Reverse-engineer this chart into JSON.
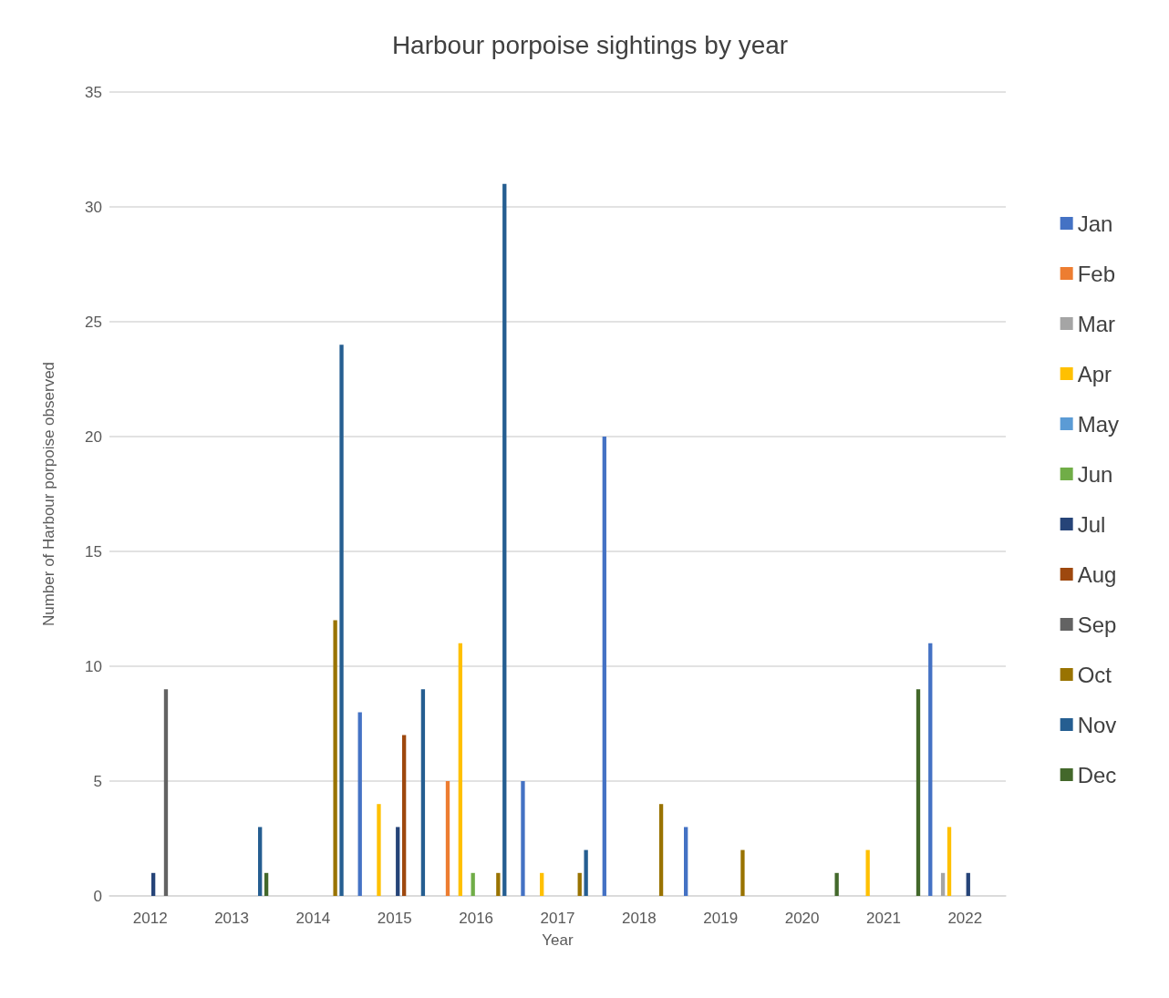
{
  "chart_data": {
    "type": "bar",
    "title": "Harbour porpoise sightings by year",
    "xlabel": "Year",
    "ylabel": "Number of Harbour porpoise observed",
    "categories": [
      "2012",
      "2013",
      "2014",
      "2015",
      "2016",
      "2017",
      "2018",
      "2019",
      "2020",
      "2021",
      "2022"
    ],
    "series": [
      {
        "name": "Jan",
        "color": "#4472c4",
        "values": [
          null,
          null,
          null,
          8,
          null,
          5,
          20,
          3,
          null,
          null,
          11
        ]
      },
      {
        "name": "Feb",
        "color": "#ed7d31",
        "values": [
          null,
          null,
          null,
          null,
          5,
          null,
          null,
          null,
          null,
          null,
          null
        ]
      },
      {
        "name": "Mar",
        "color": "#a5a5a5",
        "values": [
          null,
          null,
          null,
          null,
          null,
          null,
          null,
          null,
          null,
          null,
          1
        ]
      },
      {
        "name": "Apr",
        "color": "#ffc000",
        "values": [
          null,
          null,
          null,
          4,
          11,
          1,
          null,
          null,
          null,
          2,
          3
        ]
      },
      {
        "name": "May",
        "color": "#5b9bd5",
        "values": [
          null,
          null,
          null,
          null,
          null,
          null,
          null,
          null,
          null,
          null,
          null
        ]
      },
      {
        "name": "Jun",
        "color": "#70ad47",
        "values": [
          null,
          null,
          null,
          null,
          1,
          null,
          null,
          null,
          null,
          null,
          null
        ]
      },
      {
        "name": "Jul",
        "color": "#264478",
        "values": [
          1,
          null,
          null,
          3,
          null,
          null,
          null,
          null,
          null,
          null,
          1
        ]
      },
      {
        "name": "Aug",
        "color": "#9e480e",
        "values": [
          null,
          null,
          null,
          7,
          null,
          null,
          null,
          null,
          null,
          null,
          null
        ]
      },
      {
        "name": "Sep",
        "color": "#636363",
        "values": [
          9,
          null,
          null,
          null,
          null,
          null,
          null,
          null,
          null,
          null,
          null
        ]
      },
      {
        "name": "Oct",
        "color": "#997300",
        "values": [
          null,
          null,
          12,
          null,
          1,
          1,
          4,
          2,
          null,
          null,
          null
        ]
      },
      {
        "name": "Nov",
        "color": "#255e91",
        "values": [
          null,
          3,
          24,
          9,
          31,
          2,
          null,
          null,
          null,
          null,
          null
        ]
      },
      {
        "name": "Dec",
        "color": "#43682b",
        "values": [
          null,
          1,
          null,
          null,
          null,
          null,
          null,
          null,
          1,
          9,
          null
        ]
      }
    ],
    "ylim": [
      0,
      35
    ],
    "yticks": [
      0,
      5,
      10,
      15,
      20,
      25,
      30,
      35
    ],
    "grid": "y",
    "legend": "right"
  }
}
